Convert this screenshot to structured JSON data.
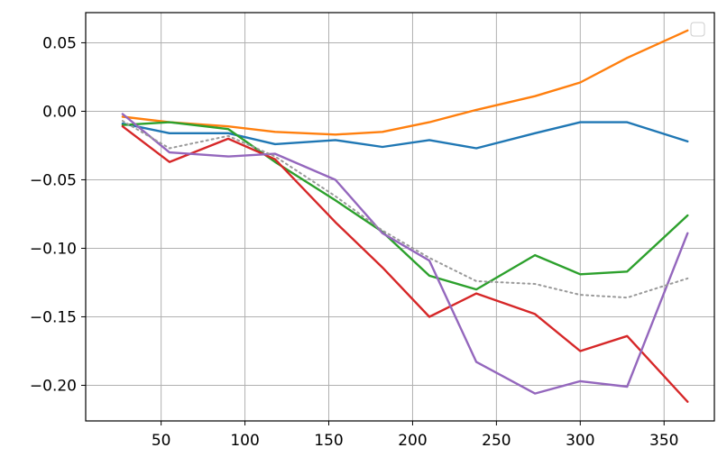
{
  "chart_data": {
    "type": "line",
    "title": "",
    "xlabel": "",
    "ylabel": "",
    "xlim": [
      5,
      380
    ],
    "ylim": [
      -0.226,
      0.072
    ],
    "grid": true,
    "legend": "top-right (empty)",
    "x_ticks": [
      50,
      100,
      150,
      200,
      250,
      300,
      350
    ],
    "x_tick_labels": [
      "50",
      "100",
      "150",
      "200",
      "250",
      "300",
      "350"
    ],
    "y_ticks": [
      0.05,
      0.0,
      -0.05,
      -0.1,
      -0.15,
      -0.2
    ],
    "y_tick_labels": [
      "0.05",
      "0.00",
      "−0.05",
      "−0.10",
      "−0.15",
      "−0.20"
    ],
    "x": [
      27,
      55,
      90,
      118,
      154,
      182,
      210,
      238,
      273,
      300,
      328,
      364
    ],
    "series": [
      {
        "color": "#1f77b4",
        "style": "solid",
        "values": [
          -0.009,
          -0.016,
          -0.016,
          -0.024,
          -0.021,
          -0.026,
          -0.021,
          -0.027,
          -0.016,
          -0.008,
          -0.008,
          -0.022
        ]
      },
      {
        "color": "#ff7f0e",
        "style": "solid",
        "values": [
          -0.004,
          -0.008,
          -0.011,
          -0.015,
          -0.017,
          -0.015,
          -0.008,
          0.001,
          0.011,
          0.021,
          0.039,
          0.059
        ]
      },
      {
        "color": "#2ca02c",
        "style": "solid",
        "values": [
          -0.01,
          -0.008,
          -0.013,
          -0.037,
          -0.065,
          -0.088,
          -0.12,
          -0.13,
          -0.105,
          -0.119,
          -0.117,
          -0.076
        ]
      },
      {
        "color": "#d62728",
        "style": "solid",
        "values": [
          -0.011,
          -0.037,
          -0.02,
          -0.035,
          -0.081,
          -0.114,
          -0.15,
          -0.133,
          -0.148,
          -0.175,
          -0.164,
          -0.212
        ]
      },
      {
        "color": "#9467bd",
        "style": "solid",
        "values": [
          -0.002,
          -0.03,
          -0.033,
          -0.031,
          -0.05,
          -0.089,
          -0.109,
          -0.183,
          -0.206,
          -0.197,
          -0.201,
          -0.089
        ]
      },
      {
        "color": "#999999",
        "style": "dotted",
        "values": [
          -0.007,
          -0.027,
          -0.018,
          -0.033,
          -0.062,
          -0.087,
          -0.107,
          -0.124,
          -0.126,
          -0.134,
          -0.136,
          -0.122
        ]
      }
    ]
  }
}
